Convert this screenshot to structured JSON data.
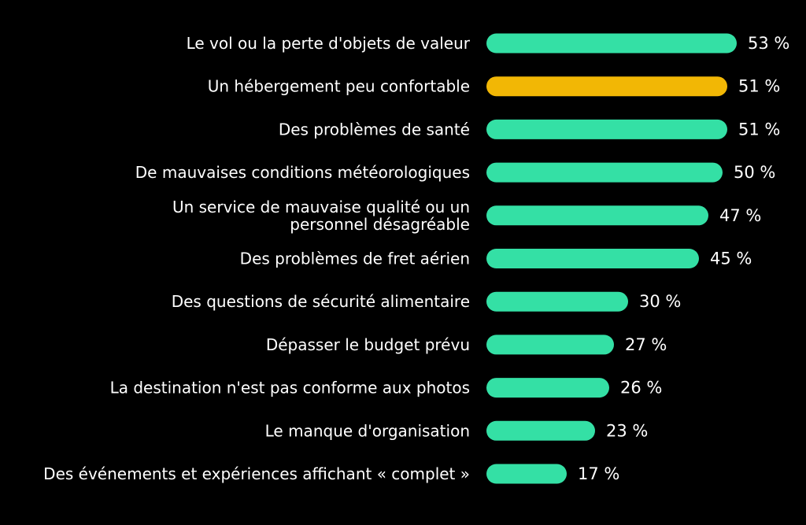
{
  "chart_data": {
    "type": "bar",
    "orientation": "horizontal",
    "categories": [
      [
        "Le vol ou la perte d'objets de valeur"
      ],
      [
        "Un hébergement peu confortable"
      ],
      [
        "Des problèmes de santé"
      ],
      [
        "De mauvaises conditions météorologiques"
      ],
      [
        "Un service de mauvaise qualité ou un",
        "personnel désagréable"
      ],
      [
        "Des problèmes de fret aérien"
      ],
      [
        "Des questions de sécurité alimentaire"
      ],
      [
        "Dépasser le budget prévu"
      ],
      [
        "La destination n'est pas conforme aux photos"
      ],
      [
        "Le manque d'organisation"
      ],
      [
        "Des événements et expériences affichant « complet »"
      ]
    ],
    "values": [
      53,
      51,
      51,
      50,
      47,
      45,
      30,
      27,
      26,
      23,
      17
    ],
    "value_labels": [
      "53 %",
      "51 %",
      "51 %",
      "50 %",
      "47 %",
      "45 %",
      "30 %",
      "27 %",
      "26 %",
      "23 %",
      "17 %"
    ],
    "highlight_index": 1,
    "colors": {
      "bar": "#34e0a5",
      "highlight": "#f2b705",
      "text": "#ffffff",
      "background": "#000000"
    },
    "title": "",
    "xlabel": "",
    "ylabel": "",
    "xlim": [
      0,
      53
    ],
    "grid": false,
    "legend": "none"
  }
}
